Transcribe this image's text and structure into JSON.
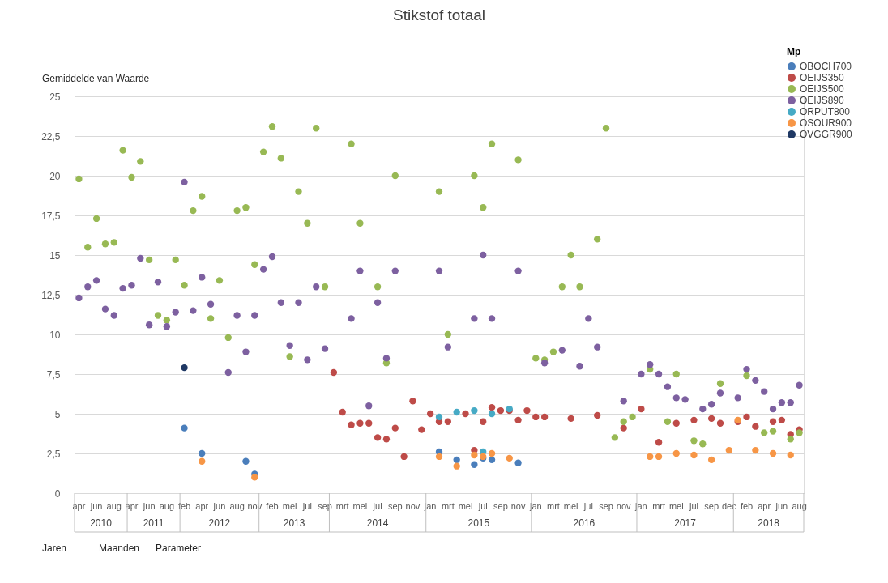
{
  "chart_data": {
    "type": "scatter",
    "title": "Stikstof totaal",
    "legend_title": "Mp",
    "legend": "top right",
    "grid": "y",
    "marker": "circle",
    "annotations": [
      "Gemiddelde van Waarde",
      "Jaren",
      "Maanden",
      "Parameter",
      "2010",
      "2011",
      "2012",
      "2013",
      "2014",
      "2015",
      "2016",
      "2017",
      "2018"
    ],
    "categories": [
      "apr",
      null,
      "jun",
      null,
      "aug",
      null,
      "apr",
      null,
      "jun",
      null,
      "aug",
      null,
      "feb",
      null,
      "apr",
      null,
      "jun",
      null,
      "aug",
      null,
      "nov",
      null,
      "feb",
      null,
      "mei",
      null,
      "jul",
      null,
      "sep",
      null,
      "mrt",
      null,
      "mei",
      null,
      "jul",
      null,
      "sep",
      null,
      "nov",
      null,
      "jan",
      null,
      "mrt",
      null,
      "mei",
      null,
      "jul",
      null,
      "sep",
      null,
      "nov",
      null,
      "jan",
      null,
      "mrt",
      null,
      "mei",
      null,
      "jul",
      null,
      "sep",
      null,
      "nov",
      null,
      "jan",
      null,
      "mrt",
      null,
      "mei",
      null,
      "jul",
      null,
      "sep",
      null,
      "dec",
      null,
      "feb",
      null,
      "apr",
      null,
      "jun",
      null,
      "aug"
    ],
    "ylim": [
      0,
      25
    ],
    "yticks": [
      0,
      {
        "value": 2.5,
        "label": "2,5"
      },
      5,
      {
        "value": 7.5,
        "label": "7,5"
      },
      10,
      {
        "value": 12.5,
        "label": "12,5"
      },
      15,
      {
        "value": 17.5,
        "label": "17,5"
      },
      20,
      {
        "value": 22.5,
        "label": "22,5"
      },
      25
    ],
    "series": [
      {
        "name": "OBOCH700",
        "color": "#4a7ebb",
        "values": [
          null,
          null,
          null,
          null,
          null,
          null,
          null,
          null,
          null,
          null,
          null,
          null,
          4.1,
          null,
          2.5,
          null,
          null,
          null,
          null,
          2.0,
          1.2,
          null,
          null,
          null,
          null,
          null,
          null,
          null,
          null,
          null,
          null,
          null,
          null,
          null,
          null,
          null,
          null,
          null,
          null,
          null,
          null,
          2.6,
          null,
          2.1,
          null,
          1.8,
          2.2,
          2.1,
          null,
          null,
          1.9,
          null,
          null,
          null,
          null,
          null,
          null,
          null,
          null,
          null,
          null,
          null,
          null,
          null,
          null,
          null,
          null,
          null,
          null,
          null,
          null,
          null,
          null,
          null,
          null,
          null,
          null,
          null,
          null,
          null,
          null,
          null,
          null
        ]
      },
      {
        "name": "OEIJS350",
        "color": "#be4b48",
        "values": [
          null,
          null,
          null,
          null,
          null,
          null,
          null,
          null,
          null,
          null,
          null,
          null,
          null,
          null,
          null,
          null,
          null,
          null,
          null,
          null,
          null,
          null,
          null,
          null,
          null,
          null,
          null,
          null,
          null,
          7.6,
          5.1,
          4.3,
          4.4,
          4.4,
          3.5,
          3.4,
          4.1,
          2.3,
          5.8,
          4.0,
          5.0,
          4.5,
          4.5,
          null,
          5.0,
          2.7,
          4.5,
          5.4,
          5.2,
          5.2,
          4.6,
          5.2,
          4.8,
          4.8,
          null,
          null,
          4.7,
          null,
          null,
          4.9,
          null,
          null,
          4.1,
          null,
          5.3,
          null,
          3.2,
          null,
          4.4,
          null,
          4.6,
          null,
          4.7,
          4.4,
          null,
          4.5,
          4.8,
          4.2,
          null,
          4.5,
          4.6,
          3.7,
          4.0
        ]
      },
      {
        "name": "OEIJS500",
        "color": "#98b954",
        "values": [
          19.8,
          15.5,
          17.3,
          15.7,
          15.8,
          21.6,
          19.9,
          20.9,
          14.7,
          11.2,
          10.9,
          14.7,
          13.1,
          17.8,
          18.7,
          11.0,
          13.4,
          9.8,
          17.8,
          18.0,
          14.4,
          21.5,
          23.1,
          21.1,
          8.6,
          19.0,
          17.0,
          23.0,
          13.0,
          null,
          null,
          22.0,
          17.0,
          null,
          13.0,
          8.2,
          20.0,
          null,
          null,
          null,
          null,
          19.0,
          10.0,
          null,
          null,
          20.0,
          18.0,
          22.0,
          null,
          null,
          21.0,
          null,
          8.5,
          8.4,
          8.9,
          13.0,
          15.0,
          13.0,
          null,
          16.0,
          23.0,
          3.5,
          4.5,
          4.8,
          null,
          7.8,
          null,
          4.5,
          7.5,
          null,
          3.3,
          3.1,
          null,
          6.9,
          null,
          null,
          7.4,
          null,
          3.8,
          3.9,
          null,
          3.4,
          3.8
        ]
      },
      {
        "name": "OEIJS890",
        "color": "#7d60a0",
        "values": [
          12.3,
          13.0,
          13.4,
          11.6,
          11.2,
          12.9,
          13.1,
          14.8,
          10.6,
          13.3,
          10.5,
          11.4,
          19.6,
          11.5,
          13.6,
          11.9,
          null,
          7.6,
          11.2,
          8.9,
          11.2,
          14.1,
          14.9,
          12.0,
          9.3,
          12.0,
          8.4,
          13.0,
          9.1,
          null,
          null,
          11.0,
          14.0,
          5.5,
          12.0,
          8.5,
          14.0,
          null,
          null,
          null,
          null,
          14.0,
          9.2,
          null,
          null,
          11.0,
          15.0,
          11.0,
          null,
          null,
          14.0,
          null,
          null,
          8.2,
          null,
          9.0,
          null,
          8.0,
          11.0,
          9.2,
          null,
          null,
          5.8,
          null,
          7.5,
          8.1,
          7.5,
          6.7,
          6.0,
          5.9,
          null,
          5.3,
          5.6,
          6.3,
          null,
          6.0,
          7.8,
          7.1,
          6.4,
          5.3,
          5.7,
          5.7,
          6.8
        ]
      },
      {
        "name": "ORPUT800",
        "color": "#46aac5",
        "values": [
          null,
          null,
          null,
          null,
          null,
          null,
          null,
          null,
          null,
          null,
          null,
          null,
          null,
          null,
          null,
          null,
          null,
          null,
          null,
          null,
          null,
          null,
          null,
          null,
          null,
          null,
          null,
          null,
          null,
          null,
          null,
          null,
          null,
          null,
          null,
          null,
          null,
          null,
          null,
          null,
          null,
          4.8,
          null,
          5.1,
          null,
          5.2,
          2.6,
          5.0,
          null,
          5.3,
          null,
          null,
          null,
          null,
          null,
          null,
          null,
          null,
          null,
          null,
          null,
          null,
          null,
          null,
          null,
          null,
          null,
          null,
          null,
          null,
          null,
          null,
          null,
          null,
          null,
          null,
          null,
          null,
          null,
          null,
          null,
          null,
          null
        ]
      },
      {
        "name": "OSOUR900",
        "color": "#f79646",
        "values": [
          null,
          null,
          null,
          null,
          null,
          null,
          null,
          null,
          null,
          null,
          null,
          null,
          null,
          null,
          2.0,
          null,
          null,
          null,
          null,
          null,
          1.0,
          null,
          null,
          null,
          null,
          null,
          null,
          null,
          null,
          null,
          null,
          null,
          null,
          null,
          null,
          null,
          null,
          null,
          null,
          null,
          null,
          2.3,
          null,
          1.7,
          null,
          2.4,
          2.3,
          2.5,
          null,
          2.2,
          null,
          null,
          null,
          null,
          null,
          null,
          null,
          null,
          null,
          null,
          null,
          null,
          null,
          null,
          null,
          2.3,
          2.3,
          null,
          2.5,
          null,
          2.4,
          null,
          2.1,
          null,
          2.7,
          4.6,
          null,
          2.7,
          null,
          2.5,
          null,
          2.4,
          null
        ]
      },
      {
        "name": "OVGGR900",
        "color": "#1f3864",
        "values": [
          null,
          null,
          null,
          null,
          null,
          null,
          null,
          null,
          null,
          null,
          null,
          null,
          7.9,
          null,
          null,
          null,
          null,
          null,
          null,
          null,
          null,
          null,
          null,
          null,
          null,
          null,
          null,
          null,
          null,
          null,
          null,
          null,
          null,
          null,
          null,
          null,
          null,
          null,
          null,
          null,
          null,
          null,
          null,
          null,
          null,
          null,
          null,
          null,
          null,
          null,
          null,
          null,
          null,
          null,
          null,
          null,
          null,
          null,
          null,
          null,
          null,
          null,
          null,
          null,
          null,
          null,
          null,
          null,
          null,
          null,
          null,
          null,
          null,
          null,
          null,
          null,
          null,
          null,
          null,
          null,
          null,
          null,
          null
        ]
      }
    ]
  }
}
